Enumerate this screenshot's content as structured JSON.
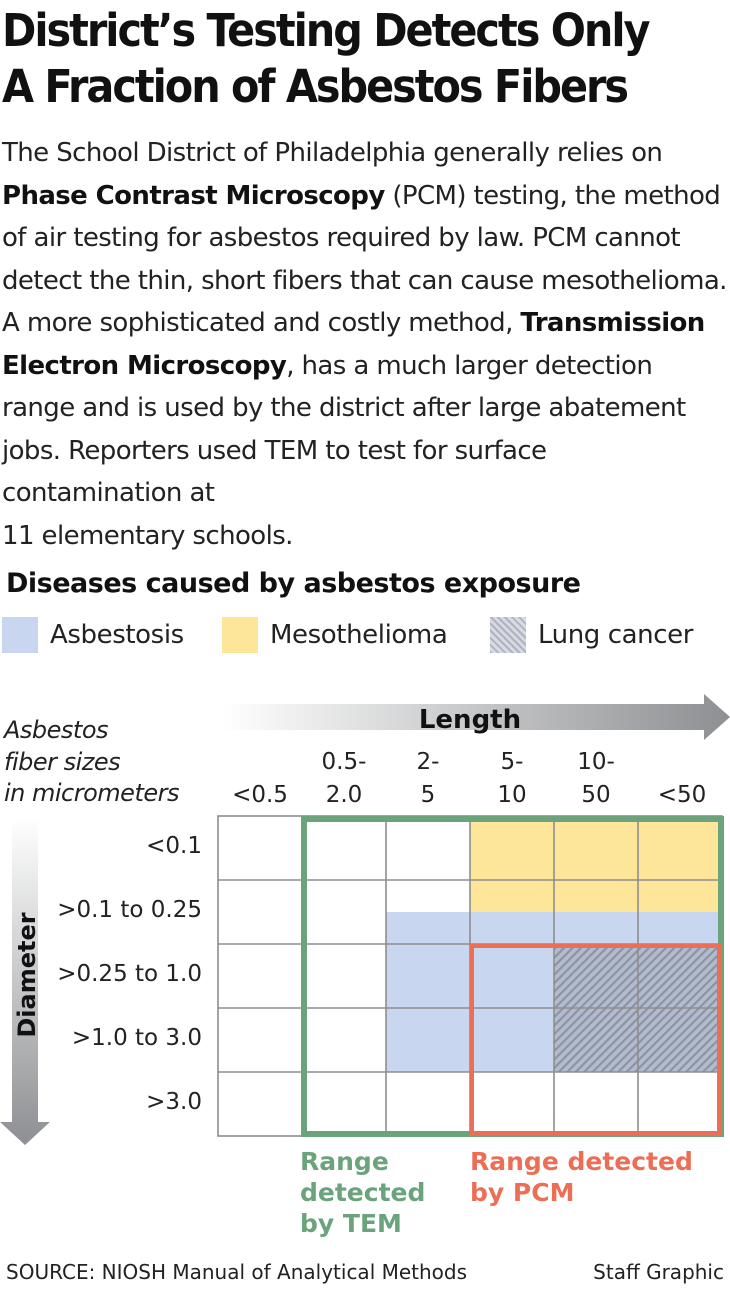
{
  "headline": {
    "line1": "District’s Testing Detects Only",
    "line2": "A Fraction of Asbestos Fibers"
  },
  "intro": {
    "p1": "The School District of Philadelphia generally relies on",
    "bold1": "Phase Contrast Microscopy",
    "p2": " (PCM) testing, the method of air testing for asbestos required by law. PCM cannot detect the thin, short fibers that can cause mesothelioma. A more sophisticated and costly method, ",
    "bold2": "Transmission Electron Microscopy",
    "p3": ", has a much larger detection range and is used by the district after large abatement jobs. Reporters used TEM to test for surface contamination at",
    "p4": "11 elementary schools."
  },
  "diseases": {
    "title": "Diseases caused by asbestos exposure",
    "legend": [
      {
        "label": "Asbestosis",
        "color": "#c8d6ef",
        "pattern": "solid"
      },
      {
        "label": "Mesothelioma",
        "color": "#fde59a",
        "pattern": "solid"
      },
      {
        "label": "Lung cancer",
        "color": "#b9bfcc",
        "pattern": "hatched"
      }
    ]
  },
  "chart_data": {
    "type": "table",
    "fiber_sizes_label": "Asbestos fiber sizes in micrometers",
    "x_axis_label": "Length",
    "y_axis_label": "Diameter",
    "length_bins": [
      "<0.5",
      "0.5-\n2.0",
      "2-\n5",
      "5-\n10",
      "10-\n50",
      "<50"
    ],
    "diameter_bins": [
      "<0.1",
      ">0.1 to 0.25",
      ">0.25 to 1.0",
      ">1.0 to 3.0",
      ">3.0"
    ],
    "disease_cells": [
      {
        "disease": "Mesothelioma",
        "diameter_rows": [
          0,
          0
        ],
        "length_cols": [
          3,
          5
        ]
      },
      {
        "disease": "Mesothelioma",
        "diameter_rows": [
          1,
          1
        ],
        "length_cols": [
          3,
          5
        ],
        "portion": "upper half"
      },
      {
        "disease": "Asbestosis",
        "diameter_rows": [
          1,
          1
        ],
        "length_cols": [
          2,
          5
        ],
        "portion": "lower half"
      },
      {
        "disease": "Asbestosis",
        "diameter_rows": [
          2,
          3
        ],
        "length_cols": [
          2,
          5
        ]
      },
      {
        "disease": "Lung cancer",
        "diameter_rows": [
          2,
          3
        ],
        "length_cols": [
          4,
          5
        ]
      }
    ],
    "detection_ranges": [
      {
        "method": "TEM",
        "label": "Range\ndetected\nby TEM",
        "color": "#6aa37c",
        "diameter_rows": [
          0,
          4
        ],
        "length_cols": [
          1,
          5
        ]
      },
      {
        "method": "PCM",
        "label": "Range detected\nby PCM",
        "color": "#ec6f55",
        "diameter_rows": [
          2,
          4
        ],
        "length_cols": [
          3,
          5
        ]
      }
    ]
  },
  "footer": {
    "source": "SOURCE: NIOSH Manual of Analytical Methods",
    "credit": "Staff Graphic"
  }
}
